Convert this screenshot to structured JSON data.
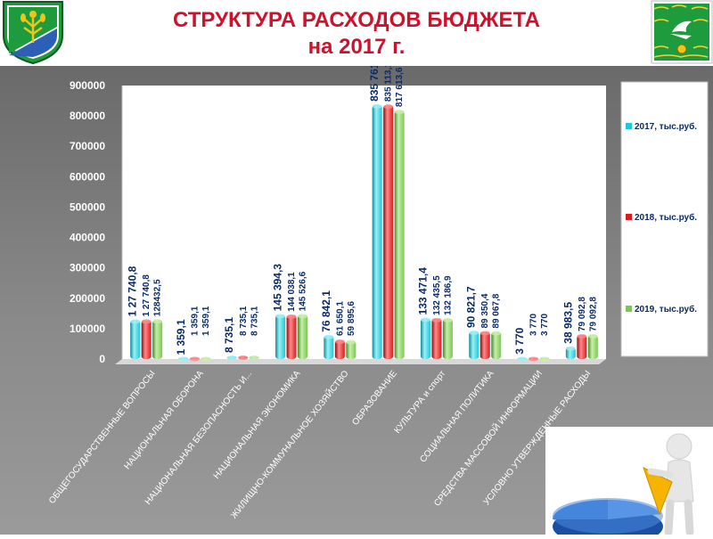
{
  "header": {
    "title_line1": "СТРУКТУРА РАСХОДОВ БЮДЖЕТА",
    "title_line2": "на 2017 г."
  },
  "icons": {
    "left": "coat-of-arms-icon",
    "right": "flag-emblem-icon",
    "corner": "presenter-pie-chart-icon"
  },
  "colors": {
    "title": "#d0112b",
    "series_2017": "#1ec8d8",
    "series_2018": "#d91c1c",
    "series_2019": "#7cc655",
    "value_labels": "#0a2a66"
  },
  "chart_data": {
    "type": "bar",
    "categories": [
      "ОБЩЕГОСУДАРСТВЕННЫЕ ВОПРОСЫ",
      "НАЦИОНАЛЬНАЯ ОБОРОНА",
      "НАЦИОНАЛЬНАЯ БЕЗОПАСНОСТЬ И...",
      "НАЦИОНАЛЬНАЯ ЭКОНОМИКА",
      "ЖИЛИЩНО-КОММУНАЛЬНОЕ ХОЗЯЙСТВО",
      "ОБРАЗОВАНИЕ",
      "КУЛЬТУРА и спорт",
      "СОЦИАЛЬНАЯ ПОЛИТИКА",
      "СРЕДСТВА МАССОВОЙ ИНФОРМАЦИИ",
      "УСЛОВНО УТВЕРЖДЕННЫЕ РАСХОДЫ"
    ],
    "series": [
      {
        "name": "2017, тыс.руб.",
        "values": [
          127740.8,
          1359.1,
          8735.1,
          145394.3,
          76842.1,
          835761.9,
          133471.4,
          90821.7,
          3770,
          38983.5
        ],
        "labels": [
          "1 27 740,8",
          "1 359,1",
          "8 735,1",
          "145 394,3",
          "76 842,1",
          "835 761,9",
          "133 471,4",
          "90 821,7",
          "3 770",
          "38 983,5"
        ]
      },
      {
        "name": "2018, тыс.руб.",
        "values": [
          127740.8,
          1359.1,
          8735.1,
          144038.1,
          61650.1,
          835113.1,
          132435.5,
          89350.4,
          3770,
          79092.8
        ],
        "labels": [
          "1 27 740,8",
          "1 359,1",
          "8 735,1",
          "144 038,1",
          "61 650,1",
          "835 113,1",
          "132 435,5",
          "89 350,4",
          "3 770",
          "79 092,8"
        ]
      },
      {
        "name": "2019, тыс.руб.",
        "values": [
          128432.5,
          1359.1,
          8735.1,
          145526.6,
          59895.6,
          817613.6,
          132186.9,
          89067.8,
          3770,
          79092.8
        ],
        "labels": [
          "128432,5",
          "1 359,1",
          "8 735,1",
          "145 526,6",
          "59 895,6",
          "817 613,6",
          "132 186,9",
          "89 067,8",
          "3 770",
          "79 092,8"
        ]
      }
    ],
    "yticks": [
      "0",
      "100000",
      "200000",
      "300000",
      "400000",
      "500000",
      "600000",
      "700000",
      "800000",
      "900000"
    ],
    "ylim": [
      0,
      900000
    ],
    "legend_position": "right",
    "grid": false
  }
}
